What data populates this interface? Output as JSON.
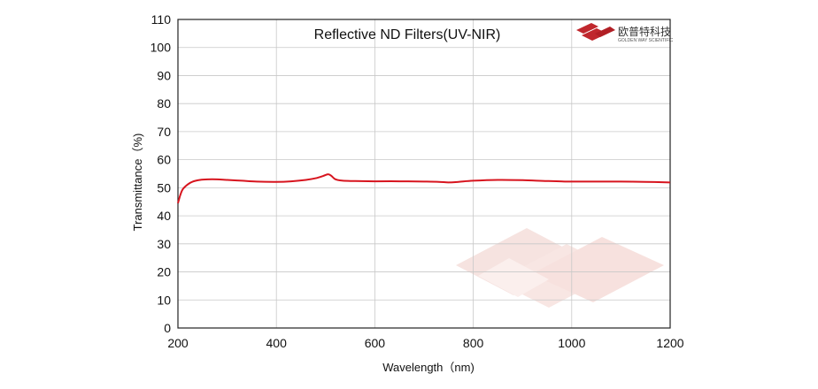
{
  "chart_data": {
    "type": "line",
    "title": "Reflective ND Filters(UV-NIR)",
    "xlabel": "Wavelength（nm)",
    "ylabel": "Transmittance（%)",
    "xlim": [
      200,
      1200
    ],
    "ylim": [
      0,
      110
    ],
    "xticks": [
      200,
      400,
      600,
      800,
      1000,
      1200
    ],
    "yticks": [
      0,
      10,
      20,
      30,
      40,
      50,
      60,
      70,
      80,
      90,
      100,
      110
    ],
    "grid": true,
    "series": [
      {
        "color": "#d7141e",
        "x": [
          200,
          205,
          210,
          220,
          230,
          245,
          260,
          280,
          300,
          330,
          360,
          400,
          430,
          460,
          480,
          495,
          505,
          512,
          520,
          535,
          560,
          600,
          650,
          700,
          730,
          750,
          770,
          800,
          850,
          900,
          950,
          1000,
          1050,
          1100,
          1150,
          1200
        ],
        "y": [
          44.5,
          47.5,
          49.5,
          51.2,
          52.2,
          52.8,
          53.0,
          53.0,
          52.8,
          52.5,
          52.2,
          52.1,
          52.3,
          52.8,
          53.4,
          54.2,
          54.8,
          54.2,
          53.0,
          52.5,
          52.4,
          52.3,
          52.3,
          52.2,
          52.1,
          51.9,
          52.1,
          52.5,
          52.8,
          52.7,
          52.4,
          52.2,
          52.2,
          52.2,
          52.1,
          51.9
        ]
      }
    ]
  },
  "logo": {
    "brand_cn": "欧普特科技",
    "brand_en": "GOLDEN WAY SCIENTIFIC",
    "color": "#c0272d",
    "watermark_color": "#f4dcd8"
  },
  "colors": {
    "grid": "#c8c8c8",
    "frame": "#222222"
  }
}
